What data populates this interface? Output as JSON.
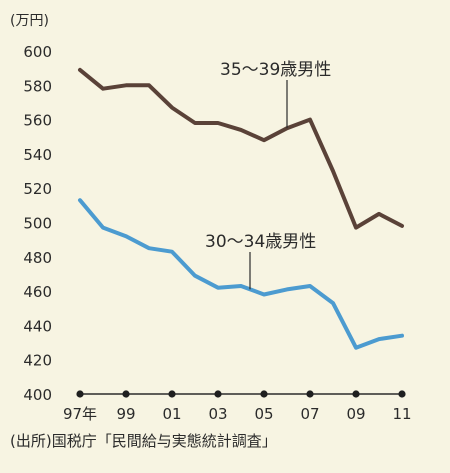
{
  "chart_data": {
    "type": "line",
    "unit_label": "(万円)",
    "x": [
      "97",
      "98",
      "99",
      "00",
      "01",
      "02",
      "03",
      "04",
      "05",
      "06",
      "07",
      "08",
      "09",
      "10",
      "11"
    ],
    "x_tick_labels": [
      "97年",
      "99",
      "01",
      "03",
      "05",
      "07",
      "09",
      "11"
    ],
    "y_ticks": [
      400,
      420,
      440,
      460,
      480,
      500,
      520,
      540,
      560,
      580,
      600
    ],
    "ylim": [
      400,
      600
    ],
    "grid": false,
    "source": "(出所)国税庁「民間給与実態統計調査」",
    "series": [
      {
        "name": "35〜39歳男性",
        "color": "#5a4238",
        "values": [
          589,
          578,
          580,
          580,
          567,
          558,
          558,
          554,
          548,
          555,
          560,
          530,
          497,
          505,
          498
        ]
      },
      {
        "name": "30〜34歳男性",
        "color": "#4c9bd0",
        "values": [
          513,
          497,
          492,
          485,
          483,
          469,
          462,
          463,
          458,
          461,
          463,
          453,
          427,
          432,
          434
        ]
      }
    ]
  }
}
